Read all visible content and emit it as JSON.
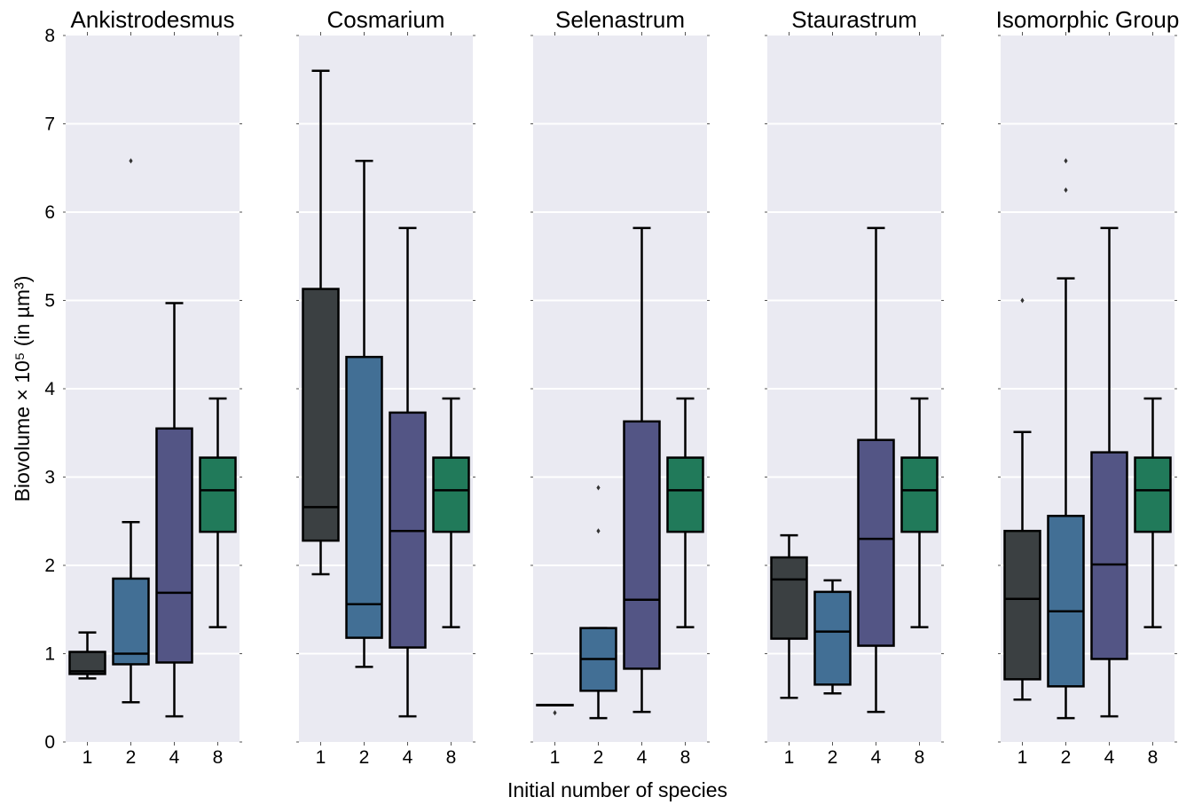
{
  "chart_data": {
    "type": "box",
    "ylabel": "Biovolume × 10⁵ (in µm³)",
    "xlabel": "Initial number of species",
    "ylim": [
      0,
      8
    ],
    "yticks": [
      "0",
      "1",
      "2",
      "3",
      "4",
      "5",
      "6",
      "7",
      "8"
    ],
    "categories": [
      "1",
      "2",
      "4",
      "8"
    ],
    "colors": [
      "#3b4042",
      "#426f95",
      "#535585",
      "#217a5a"
    ],
    "background": "#eaeaf2",
    "grid": "horizontal",
    "panels": [
      {
        "title": "Ankistrodesmus",
        "boxes": [
          {
            "category": "1",
            "whislo": 0.72,
            "q1": 0.77,
            "med": 0.8,
            "q3": 1.02,
            "whishi": 1.24,
            "fliers": []
          },
          {
            "category": "2",
            "whislo": 0.45,
            "q1": 0.88,
            "med": 1.0,
            "q3": 1.85,
            "whishi": 2.49,
            "fliers": [
              6.58
            ]
          },
          {
            "category": "4",
            "whislo": 0.29,
            "q1": 0.9,
            "med": 1.69,
            "q3": 3.55,
            "whishi": 4.97,
            "fliers": []
          },
          {
            "category": "8",
            "whislo": 1.3,
            "q1": 2.38,
            "med": 2.85,
            "q3": 3.22,
            "whishi": 3.89,
            "fliers": []
          }
        ]
      },
      {
        "title": "Cosmarium",
        "boxes": [
          {
            "category": "1",
            "whislo": 1.9,
            "q1": 2.28,
            "med": 2.66,
            "q3": 5.13,
            "whishi": 7.6,
            "fliers": []
          },
          {
            "category": "2",
            "whislo": 0.85,
            "q1": 1.18,
            "med": 1.56,
            "q3": 4.36,
            "whishi": 6.58,
            "fliers": []
          },
          {
            "category": "4",
            "whislo": 0.29,
            "q1": 1.07,
            "med": 2.39,
            "q3": 3.73,
            "whishi": 5.82,
            "fliers": []
          },
          {
            "category": "8",
            "whislo": 1.3,
            "q1": 2.38,
            "med": 2.85,
            "q3": 3.22,
            "whishi": 3.89,
            "fliers": []
          }
        ]
      },
      {
        "title": "Selenastrum",
        "boxes": [
          {
            "category": "1",
            "whislo": 0.42,
            "q1": 0.42,
            "med": 0.42,
            "q3": 0.42,
            "whishi": 0.42,
            "fliers": [
              0.33
            ]
          },
          {
            "category": "2",
            "whislo": 0.27,
            "q1": 0.58,
            "med": 0.94,
            "q3": 1.29,
            "whishi": 1.29,
            "fliers": [
              2.39,
              2.88
            ]
          },
          {
            "category": "4",
            "whislo": 0.34,
            "q1": 0.83,
            "med": 1.61,
            "q3": 3.63,
            "whishi": 5.82,
            "fliers": []
          },
          {
            "category": "8",
            "whislo": 1.3,
            "q1": 2.38,
            "med": 2.85,
            "q3": 3.22,
            "whishi": 3.89,
            "fliers": []
          }
        ]
      },
      {
        "title": "Staurastrum",
        "boxes": [
          {
            "category": "1",
            "whislo": 0.5,
            "q1": 1.17,
            "med": 1.84,
            "q3": 2.09,
            "whishi": 2.34,
            "fliers": []
          },
          {
            "category": "2",
            "whislo": 0.55,
            "q1": 0.65,
            "med": 1.25,
            "q3": 1.7,
            "whishi": 1.83,
            "fliers": []
          },
          {
            "category": "4",
            "whislo": 0.34,
            "q1": 1.09,
            "med": 2.3,
            "q3": 3.42,
            "whishi": 5.82,
            "fliers": []
          },
          {
            "category": "8",
            "whislo": 1.3,
            "q1": 2.38,
            "med": 2.85,
            "q3": 3.22,
            "whishi": 3.89,
            "fliers": []
          }
        ]
      },
      {
        "title": "Isomorphic Group",
        "boxes": [
          {
            "category": "1",
            "whislo": 0.48,
            "q1": 0.71,
            "med": 1.62,
            "q3": 2.39,
            "whishi": 3.51,
            "fliers": [
              5.0
            ]
          },
          {
            "category": "2",
            "whislo": 0.27,
            "q1": 0.63,
            "med": 1.48,
            "q3": 2.56,
            "whishi": 5.25,
            "fliers": [
              6.25,
              6.58
            ]
          },
          {
            "category": "4",
            "whislo": 0.29,
            "q1": 0.94,
            "med": 2.01,
            "q3": 3.28,
            "whishi": 5.82,
            "fliers": []
          },
          {
            "category": "8",
            "whislo": 1.3,
            "q1": 2.38,
            "med": 2.85,
            "q3": 3.22,
            "whishi": 3.89,
            "fliers": []
          }
        ]
      }
    ]
  }
}
